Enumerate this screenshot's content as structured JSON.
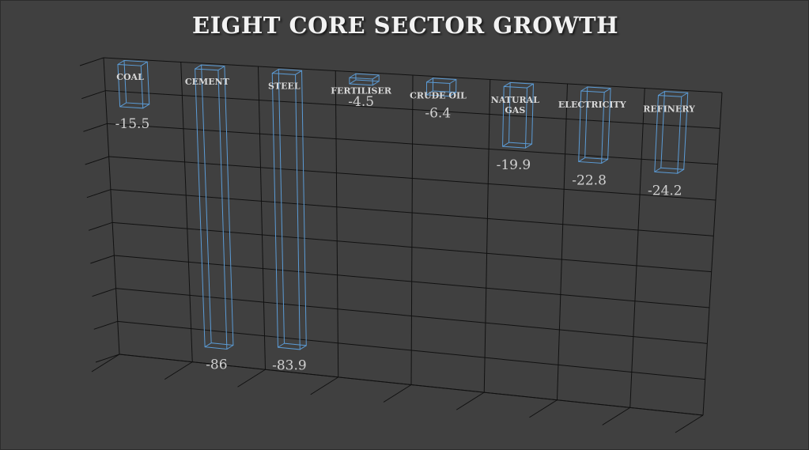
{
  "chart_data": {
    "type": "bar",
    "title": "EIGHT CORE SECTOR GROWTH",
    "categories": [
      "COAL",
      "CEMENT",
      "STEEL",
      "FERTILISER",
      "CRUDE OIL",
      "NATURAL GAS",
      "ELECTRICITY",
      "REFINERY"
    ],
    "values": [
      -15.5,
      -86,
      -83.9,
      -4.5,
      -6.4,
      -19.9,
      -22.8,
      -24.2
    ],
    "data_labels": [
      "-15.5",
      "-86",
      "-83.9",
      "-4.5",
      "-6.4",
      "-19.9",
      "-22.8",
      "-24.2"
    ],
    "ylim": [
      -90,
      0
    ],
    "grid": true,
    "style": "3d-wireframe-column",
    "bar_color": "#5b9bd5",
    "xlabel": "",
    "ylabel": ""
  }
}
